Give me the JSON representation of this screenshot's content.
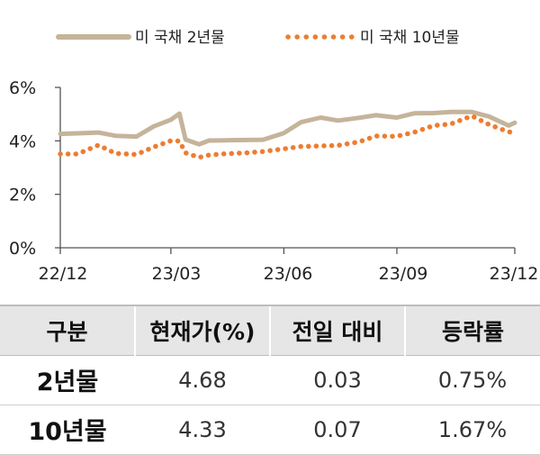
{
  "chart_data": {
    "type": "line",
    "title": "",
    "xlabel": "",
    "ylabel": "",
    "x_ticks": [
      "22/12",
      "23/03",
      "23/06",
      "23/09",
      "23/12"
    ],
    "y_ticks": [
      "0%",
      "2%",
      "4%",
      "6%"
    ],
    "ylim": [
      0,
      6
    ],
    "legend_position": "top",
    "grid": false,
    "series": [
      {
        "name": "미 국채 2년물",
        "color": "#c5b49a",
        "style": "solid",
        "x": [
          "2022-12-01",
          "2022-12-15",
          "2023-01-01",
          "2023-01-15",
          "2023-02-01",
          "2023-02-15",
          "2023-03-01",
          "2023-03-08",
          "2023-03-13",
          "2023-03-24",
          "2023-04-01",
          "2023-04-15",
          "2023-05-01",
          "2023-05-15",
          "2023-06-01",
          "2023-06-15",
          "2023-07-01",
          "2023-07-15",
          "2023-08-01",
          "2023-08-15",
          "2023-09-01",
          "2023-09-15",
          "2023-10-01",
          "2023-10-15",
          "2023-11-01",
          "2023-11-15",
          "2023-12-01",
          "2023-12-06"
        ],
        "values": [
          4.26,
          4.28,
          4.31,
          4.19,
          4.16,
          4.54,
          4.79,
          5.02,
          4.05,
          3.87,
          4.01,
          4.02,
          4.03,
          4.04,
          4.29,
          4.7,
          4.87,
          4.76,
          4.86,
          4.96,
          4.87,
          5.03,
          5.04,
          5.08,
          5.08,
          4.91,
          4.57,
          4.68
        ]
      },
      {
        "name": "미 국채 10년물",
        "color": "#ed7d31",
        "style": "dotted",
        "x": [
          "2022-12-01",
          "2022-12-15",
          "2023-01-01",
          "2023-01-15",
          "2023-02-01",
          "2023-02-15",
          "2023-03-01",
          "2023-03-08",
          "2023-03-13",
          "2023-03-24",
          "2023-04-01",
          "2023-04-15",
          "2023-05-01",
          "2023-05-15",
          "2023-06-01",
          "2023-06-15",
          "2023-07-01",
          "2023-07-15",
          "2023-08-01",
          "2023-08-15",
          "2023-09-01",
          "2023-09-15",
          "2023-10-01",
          "2023-10-15",
          "2023-11-01",
          "2023-11-15",
          "2023-12-01",
          "2023-12-06"
        ],
        "values": [
          3.51,
          3.51,
          3.84,
          3.53,
          3.49,
          3.77,
          4.0,
          3.99,
          3.55,
          3.38,
          3.47,
          3.52,
          3.55,
          3.6,
          3.7,
          3.79,
          3.81,
          3.83,
          3.96,
          4.18,
          4.17,
          4.32,
          4.57,
          4.63,
          4.93,
          4.61,
          4.33,
          4.33
        ]
      }
    ]
  },
  "table": {
    "headers": [
      "구분",
      "현재가(%)",
      "전일 대비",
      "등락률"
    ],
    "rows": [
      {
        "label": "2년물",
        "price": "4.68",
        "change": "0.03",
        "rate": "0.75%"
      },
      {
        "label": "10년물",
        "price": "4.33",
        "change": "0.07",
        "rate": "1.67%"
      }
    ]
  }
}
